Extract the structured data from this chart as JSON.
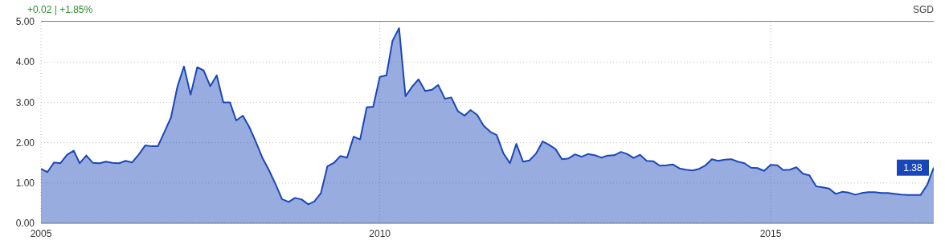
{
  "chart_data": {
    "type": "area",
    "annotations": [
      "+0.02 | +1.85%",
      "SGD",
      {
        "text": "1.38",
        "x": "2017-02",
        "y": 1.38
      }
    ],
    "x": [
      "2005-09",
      "2005-10",
      "2005-11",
      "2005-12",
      "2006-01",
      "2006-02",
      "2006-03",
      "2006-04",
      "2006-05",
      "2006-06",
      "2006-07",
      "2006-08",
      "2006-09",
      "2006-10",
      "2006-11",
      "2006-12",
      "2007-01",
      "2007-02",
      "2007-03",
      "2007-04",
      "2007-05",
      "2007-06",
      "2007-07",
      "2007-08",
      "2007-09",
      "2007-10",
      "2007-11",
      "2007-12",
      "2008-01",
      "2008-02",
      "2008-03",
      "2008-04",
      "2008-05",
      "2008-06",
      "2008-07",
      "2008-08",
      "2008-09",
      "2008-10",
      "2008-11",
      "2008-12",
      "2009-01",
      "2009-02",
      "2009-03",
      "2009-04",
      "2009-05",
      "2009-06",
      "2009-07",
      "2009-08",
      "2009-09",
      "2009-10",
      "2009-11",
      "2009-12",
      "2010-01",
      "2010-02",
      "2010-03",
      "2010-04",
      "2010-05",
      "2010-06",
      "2010-07",
      "2010-08",
      "2010-09",
      "2010-10",
      "2010-11",
      "2010-12",
      "2011-01",
      "2011-02",
      "2011-03",
      "2011-04",
      "2011-05",
      "2011-06",
      "2011-07",
      "2011-08",
      "2011-09",
      "2011-10",
      "2011-11",
      "2011-12",
      "2012-01",
      "2012-02",
      "2012-03",
      "2012-04",
      "2012-05",
      "2012-06",
      "2012-07",
      "2012-08",
      "2012-09",
      "2012-10",
      "2012-11",
      "2012-12",
      "2013-01",
      "2013-02",
      "2013-03",
      "2013-04",
      "2013-05",
      "2013-06",
      "2013-07",
      "2013-08",
      "2013-09",
      "2013-10",
      "2013-11",
      "2013-12",
      "2014-01",
      "2014-02",
      "2014-03",
      "2014-04",
      "2014-05",
      "2014-06",
      "2014-07",
      "2014-08",
      "2014-09",
      "2014-10",
      "2014-11",
      "2014-12",
      "2015-01",
      "2015-02",
      "2015-03",
      "2015-04",
      "2015-05",
      "2015-06",
      "2015-07",
      "2015-08",
      "2015-09",
      "2015-10",
      "2015-11",
      "2015-12",
      "2016-01",
      "2016-02",
      "2016-03",
      "2016-04",
      "2016-05",
      "2016-06",
      "2016-07",
      "2016-08",
      "2016-09",
      "2016-10",
      "2016-11",
      "2016-12",
      "2017-01",
      "2017-02"
    ],
    "values": [
      1.35,
      1.27,
      1.51,
      1.49,
      1.7,
      1.8,
      1.49,
      1.68,
      1.5,
      1.49,
      1.53,
      1.5,
      1.49,
      1.55,
      1.51,
      1.7,
      1.93,
      1.91,
      1.91,
      2.27,
      2.62,
      3.4,
      3.89,
      3.19,
      3.87,
      3.79,
      3.4,
      3.67,
      3.0,
      3.0,
      2.55,
      2.67,
      2.39,
      2.02,
      1.63,
      1.32,
      0.97,
      0.6,
      0.53,
      0.63,
      0.59,
      0.47,
      0.54,
      0.75,
      1.41,
      1.5,
      1.67,
      1.63,
      2.15,
      2.08,
      2.88,
      2.89,
      3.63,
      3.67,
      4.52,
      4.84,
      3.15,
      3.39,
      3.57,
      3.28,
      3.31,
      3.43,
      3.09,
      3.12,
      2.78,
      2.67,
      2.81,
      2.69,
      2.42,
      2.27,
      2.19,
      1.74,
      1.49,
      1.97,
      1.53,
      1.56,
      1.73,
      2.03,
      1.95,
      1.84,
      1.59,
      1.61,
      1.71,
      1.65,
      1.72,
      1.69,
      1.63,
      1.68,
      1.69,
      1.77,
      1.72,
      1.62,
      1.7,
      1.55,
      1.54,
      1.43,
      1.44,
      1.46,
      1.36,
      1.33,
      1.31,
      1.35,
      1.43,
      1.59,
      1.55,
      1.58,
      1.59,
      1.53,
      1.49,
      1.38,
      1.37,
      1.3,
      1.45,
      1.44,
      1.32,
      1.33,
      1.39,
      1.23,
      1.19,
      0.92,
      0.89,
      0.86,
      0.73,
      0.78,
      0.76,
      0.71,
      0.75,
      0.77,
      0.77,
      0.75,
      0.75,
      0.73,
      0.71,
      0.7,
      0.7,
      0.7,
      0.95,
      1.38
    ],
    "color": "#1a47b8",
    "xlim": [
      "2005-09",
      "2017-02"
    ],
    "xticks": [
      {
        "value": "2005-09",
        "label": "2005"
      },
      "2010",
      "2015"
    ],
    "ylim": [
      0,
      5
    ],
    "yticks": [
      {
        "value": 0,
        "label": "0.00"
      },
      {
        "value": 1,
        "label": "1.00"
      },
      {
        "value": 2,
        "label": "2.00"
      },
      {
        "value": 3,
        "label": "3.00"
      },
      {
        "value": 4,
        "label": "4.00"
      },
      {
        "value": 5,
        "label": "5.00"
      }
    ],
    "grid": true
  }
}
